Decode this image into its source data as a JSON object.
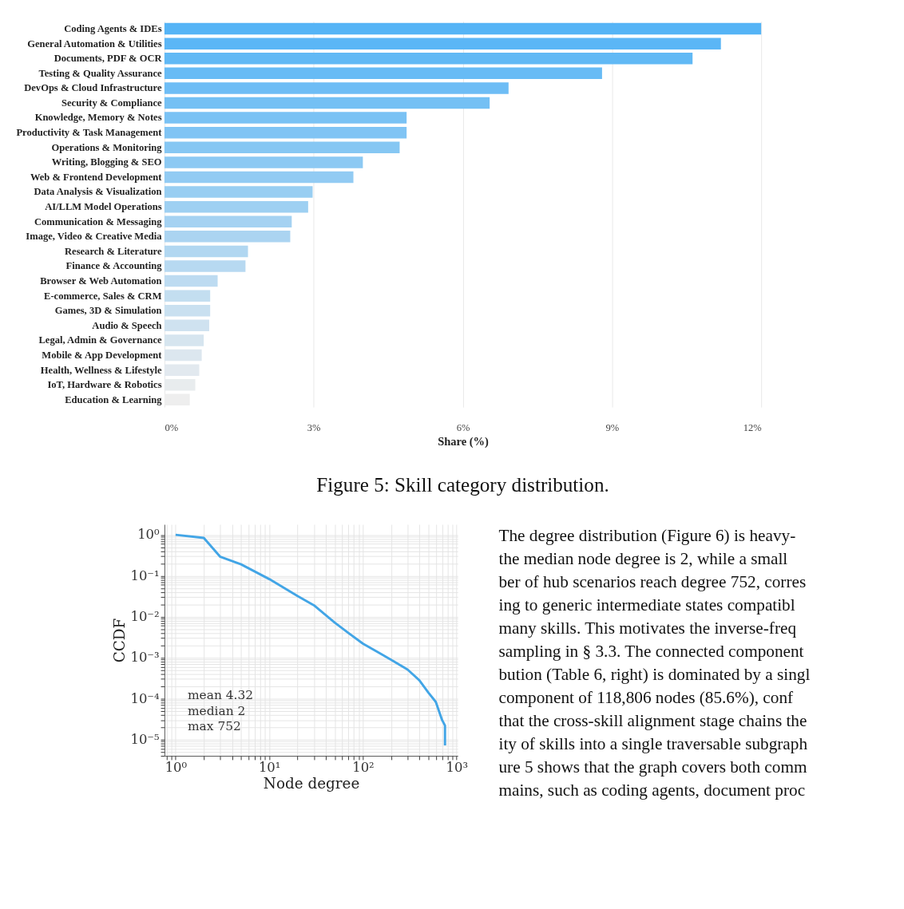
{
  "chart_data": [
    {
      "type": "bar",
      "orientation": "horizontal",
      "xlabel": "Share (%)",
      "grid": "x",
      "categories": [
        "Coding Agents & IDEs",
        "General Automation & Utilities",
        "Documents, PDF & OCR",
        "Testing & Quality Assurance",
        "DevOps & Cloud Infrastructure",
        "Security & Compliance",
        "Knowledge, Memory & Notes",
        "Productivity & Task Management",
        "Operations & Monitoring",
        "Writing, Blogging & SEO",
        "Web & Frontend Development",
        "Data Analysis & Visualization",
        "AI/LLM Model Operations",
        "Communication & Messaging",
        "Image, Video & Creative Media",
        "Research & Literature",
        "Finance & Accounting",
        "Browser & Web Automation",
        "E-commerce, Sales & CRM",
        "Games, 3D & Simulation",
        "Audio & Speech",
        "Legal, Admin & Governance",
        "Mobile & App Development",
        "Health, Wellness & Lifestyle",
        "IoT, Hardware & Robotics",
        "Education & Learning"
      ],
      "values": [
        12.0,
        11.19,
        10.62,
        8.8,
        6.92,
        6.54,
        4.87,
        4.87,
        4.73,
        3.99,
        3.8,
        2.98,
        2.89,
        2.56,
        2.53,
        1.68,
        1.63,
        1.07,
        0.92,
        0.92,
        0.9,
        0.79,
        0.75,
        0.7,
        0.62,
        0.51
      ],
      "colors": [
        "#55b4f6",
        "#5bb6f6",
        "#61b9f5",
        "#67bbf5",
        "#6ebdf5",
        "#74c0f4",
        "#7ac2f4",
        "#80c4f4",
        "#86c7f3",
        "#8cc9f3",
        "#92cbf3",
        "#98cef2",
        "#9ed0f2",
        "#a5d2f2",
        "#abd4f1",
        "#b1d7f1",
        "#b7d9f1",
        "#bddbf1",
        "#c3def0",
        "#c9e0f0",
        "#cfe2f0",
        "#d6e5ef",
        "#dce7ef",
        "#e2e9ef",
        "#e8ecee",
        "#eeeeee"
      ],
      "xlim": [
        0,
        12
      ],
      "xticks": [
        {
          "value": 0,
          "label": "0%"
        },
        {
          "value": 3,
          "label": "3%"
        },
        {
          "value": 6,
          "label": "6%"
        },
        {
          "value": 9,
          "label": "9%"
        },
        {
          "value": 12,
          "label": "12%"
        }
      ],
      "annotations": [
        "Figure 5: Skill category distribution."
      ]
    },
    {
      "type": "line",
      "xlabel": "Node degree",
      "ylabel": "CCDF",
      "log": "xy",
      "grid": true,
      "line_style": "solid",
      "x": [
        1,
        2,
        3,
        5,
        10,
        20,
        30,
        50,
        70,
        100,
        150,
        200,
        300,
        400,
        500,
        600,
        700,
        752,
        752
      ],
      "series": [
        {
          "color": "#42a5e6",
          "values": [
            1,
            0.84,
            0.29,
            0.19,
            0.083,
            0.032,
            0.019,
            0.0072,
            0.004,
            0.0022,
            0.0013,
            0.00089,
            0.00051,
            0.00028,
            0.00014,
            8.3e-05,
            3e-05,
            2.2e-05,
            7.2e-06
          ]
        }
      ],
      "xlim": [
        0.76,
        1030
      ],
      "ylim": [
        4e-06,
        1.8
      ],
      "xticks": [
        {
          "value": 0.8,
          "label": null
        },
        {
          "value": 0.9,
          "label": null
        },
        {
          "value": 1,
          "label": "10⁰"
        },
        {
          "value": 2,
          "label": null
        },
        {
          "value": 3,
          "label": null
        },
        {
          "value": 4,
          "label": null
        },
        {
          "value": 5,
          "label": null
        },
        {
          "value": 6,
          "label": null
        },
        {
          "value": 7,
          "label": null
        },
        {
          "value": 8,
          "label": null
        },
        {
          "value": 9,
          "label": null
        },
        {
          "value": 10,
          "label": "10¹"
        },
        {
          "value": 20,
          "label": null
        },
        {
          "value": 30,
          "label": null
        },
        {
          "value": 40,
          "label": null
        },
        {
          "value": 50,
          "label": null
        },
        {
          "value": 60,
          "label": null
        },
        {
          "value": 70,
          "label": null
        },
        {
          "value": 80,
          "label": null
        },
        {
          "value": 90,
          "label": null
        },
        {
          "value": 100,
          "label": "10²"
        },
        {
          "value": 200,
          "label": null
        },
        {
          "value": 300,
          "label": null
        },
        {
          "value": 400,
          "label": null
        },
        {
          "value": 500,
          "label": null
        },
        {
          "value": 600,
          "label": null
        },
        {
          "value": 700,
          "label": null
        },
        {
          "value": 800,
          "label": null
        },
        {
          "value": 900,
          "label": null
        },
        {
          "value": 1000,
          "label": "10³"
        }
      ],
      "yticks": [
        {
          "value": 4e-06,
          "label": null
        },
        {
          "value": 5e-06,
          "label": null
        },
        {
          "value": 6e-06,
          "label": null
        },
        {
          "value": 7e-06,
          "label": null
        },
        {
          "value": 8e-06,
          "label": null
        },
        {
          "value": 9e-06,
          "label": null
        },
        {
          "value": 1e-05,
          "label": "10⁻⁵"
        },
        {
          "value": 2e-05,
          "label": null
        },
        {
          "value": 3e-05,
          "label": null
        },
        {
          "value": 4e-05,
          "label": null
        },
        {
          "value": 5e-05,
          "label": null
        },
        {
          "value": 6e-05,
          "label": null
        },
        {
          "value": 7e-05,
          "label": null
        },
        {
          "value": 8e-05,
          "label": null
        },
        {
          "value": 9e-05,
          "label": null
        },
        {
          "value": 0.0001,
          "label": "10⁻⁴"
        },
        {
          "value": 0.0002,
          "label": null
        },
        {
          "value": 0.0003,
          "label": null
        },
        {
          "value": 0.0004,
          "label": null
        },
        {
          "value": 0.0005,
          "label": null
        },
        {
          "value": 0.0006,
          "label": null
        },
        {
          "value": 0.0007,
          "label": null
        },
        {
          "value": 0.0008,
          "label": null
        },
        {
          "value": 0.0009,
          "label": null
        },
        {
          "value": 0.001,
          "label": "10⁻³"
        },
        {
          "value": 0.002,
          "label": null
        },
        {
          "value": 0.003,
          "label": null
        },
        {
          "value": 0.004,
          "label": null
        },
        {
          "value": 0.005,
          "label": null
        },
        {
          "value": 0.006,
          "label": null
        },
        {
          "value": 0.007,
          "label": null
        },
        {
          "value": 0.008,
          "label": null
        },
        {
          "value": 0.009,
          "label": null
        },
        {
          "value": 0.01,
          "label": "10⁻²"
        },
        {
          "value": 0.02,
          "label": null
        },
        {
          "value": 0.03,
          "label": null
        },
        {
          "value": 0.04,
          "label": null
        },
        {
          "value": 0.05,
          "label": null
        },
        {
          "value": 0.06,
          "label": null
        },
        {
          "value": 0.07,
          "label": null
        },
        {
          "value": 0.08,
          "label": null
        },
        {
          "value": 0.09,
          "label": null
        },
        {
          "value": 0.1,
          "label": "10⁻¹"
        },
        {
          "value": 0.2,
          "label": null
        },
        {
          "value": 0.3,
          "label": null
        },
        {
          "value": 0.4,
          "label": null
        },
        {
          "value": 0.5,
          "label": null
        },
        {
          "value": 0.6,
          "label": null
        },
        {
          "value": 0.7,
          "label": null
        },
        {
          "value": 0.8,
          "label": null
        },
        {
          "value": 0.9,
          "label": null
        },
        {
          "value": 1,
          "label": "10⁰"
        }
      ],
      "annotations": [
        "mean 4.32",
        "median 2",
        "max 752"
      ]
    },
    {
      "type": "other",
      "annotations": [
        "The degree distribution (Figure 6) is heavy-",
        "the median node degree is 2, while a small",
        "ber of hub scenarios reach degree 752, corres",
        "ing to generic intermediate states compatibl",
        "many skills. This motivates the inverse-freq",
        "sampling in § 3.3. The connected component",
        "bution (Table 6, right) is dominated by a singl",
        "component of 118,806 nodes (85.6%), conf",
        "that the cross-skill alignment stage chains the",
        "ity of skills into a single traversable subgraph",
        "ure 5 shows that the graph covers both comm",
        "mains, such as coding agents, document proc"
      ]
    }
  ]
}
